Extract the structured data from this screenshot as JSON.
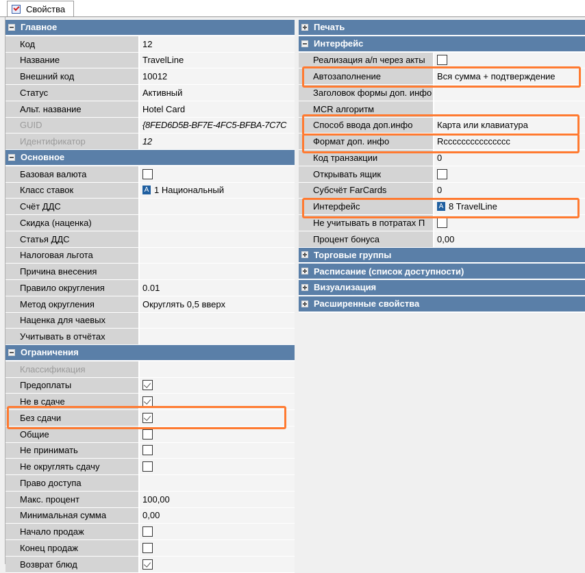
{
  "tab": {
    "label": "Свойства",
    "icon": "properties-checklist-icon"
  },
  "colors": {
    "category_header": "#5a7fa8",
    "highlight": "#ff7a30",
    "label_bg": "#d4d4d4"
  },
  "left": [
    {
      "category": "Главное",
      "expanded": true,
      "rows": [
        {
          "label": "Код",
          "value": "12"
        },
        {
          "label": "Название",
          "value": "TravelLine"
        },
        {
          "label": "Внешний код",
          "value": "10012"
        },
        {
          "label": "Статус",
          "value": "Активный"
        },
        {
          "label": "Альт. название",
          "value": "Hotel Card"
        },
        {
          "label": "GUID",
          "value": "{8FED6D5B-BF7E-4FC5-BFBA-7C7C",
          "disabled": true,
          "italic": true
        },
        {
          "label": "Идентификатор",
          "value": "12",
          "disabled": true,
          "italic": true
        }
      ]
    },
    {
      "category": "Основное",
      "expanded": true,
      "rows": [
        {
          "label": "Базовая валюта",
          "type": "check",
          "checked": false
        },
        {
          "label": "Класс ставок",
          "type": "ref",
          "value": "1 Национальный"
        },
        {
          "label": "Счёт ДДС",
          "value": ""
        },
        {
          "label": "Скидка (наценка)",
          "value": ""
        },
        {
          "label": "Статья ДДС",
          "value": ""
        },
        {
          "label": "Налоговая льгота",
          "value": ""
        },
        {
          "label": "Причина внесения",
          "value": ""
        },
        {
          "label": "Правило округления",
          "value": "0.01"
        },
        {
          "label": "Метод округления",
          "value": "Округлять 0,5 вверх"
        },
        {
          "label": "Наценка для чаевых",
          "value": ""
        },
        {
          "label": "Учитывать в отчётах",
          "value": ""
        }
      ]
    },
    {
      "category": "Ограничения",
      "expanded": true,
      "rows": [
        {
          "label": "Классификация",
          "value": "",
          "disabled": true
        },
        {
          "label": "Предоплаты",
          "type": "check",
          "checked": true
        },
        {
          "label": "Не в сдаче",
          "type": "check",
          "checked": true
        },
        {
          "label": "Без сдачи",
          "type": "check",
          "checked": true,
          "highlighted": true
        },
        {
          "label": "Общие",
          "type": "check",
          "checked": false
        },
        {
          "label": "Не принимать",
          "type": "check",
          "checked": false
        },
        {
          "label": "Не округлять сдачу",
          "type": "check",
          "checked": false
        },
        {
          "label": "Право доступа",
          "value": ""
        },
        {
          "label": "Макс. процент",
          "value": "100,00"
        },
        {
          "label": "Минимальная сумма",
          "value": "0,00"
        },
        {
          "label": "Начало продаж",
          "type": "check",
          "checked": false
        },
        {
          "label": "Конец продаж",
          "type": "check",
          "checked": false
        },
        {
          "label": "Возврат блюд",
          "type": "check",
          "checked": true
        }
      ]
    }
  ],
  "right": [
    {
      "category": "Печать",
      "expanded": false,
      "rows": []
    },
    {
      "category": "Интерфейс",
      "expanded": true,
      "rows": [
        {
          "label": "Реализация а/п через акты",
          "type": "check",
          "checked": false
        },
        {
          "label": "Автозаполнение",
          "value": "Вся сумма + подтверждение",
          "highlighted": true
        },
        {
          "label": "Заголовок формы доп. инфо",
          "value": ""
        },
        {
          "label": "MCR алгоритм",
          "value": ""
        },
        {
          "label": "Способ ввода доп.инфо",
          "value": "Карта или клавиатура",
          "highlighted": true
        },
        {
          "label": "Формат доп. инфо",
          "value": "Rccccccccccccccc",
          "highlighted": true
        },
        {
          "label": "Код транзакции",
          "value": "0"
        },
        {
          "label": "Открывать ящик",
          "type": "check",
          "checked": false
        },
        {
          "label": "Субсчёт FarCards",
          "value": "0"
        },
        {
          "label": "Интерфейс",
          "type": "ref",
          "value": "8 TravelLine",
          "highlighted": true
        },
        {
          "label": "Не учитывать в потратах П",
          "type": "check",
          "checked": false
        },
        {
          "label": "Процент бонуса",
          "value": "0,00"
        }
      ]
    },
    {
      "category": "Торговые группы",
      "expanded": false,
      "rows": []
    },
    {
      "category": "Расписание (список доступности)",
      "expanded": false,
      "rows": []
    },
    {
      "category": "Визуализация",
      "expanded": false,
      "rows": []
    },
    {
      "category": "Расширенные свойства",
      "expanded": false,
      "rows": []
    }
  ]
}
